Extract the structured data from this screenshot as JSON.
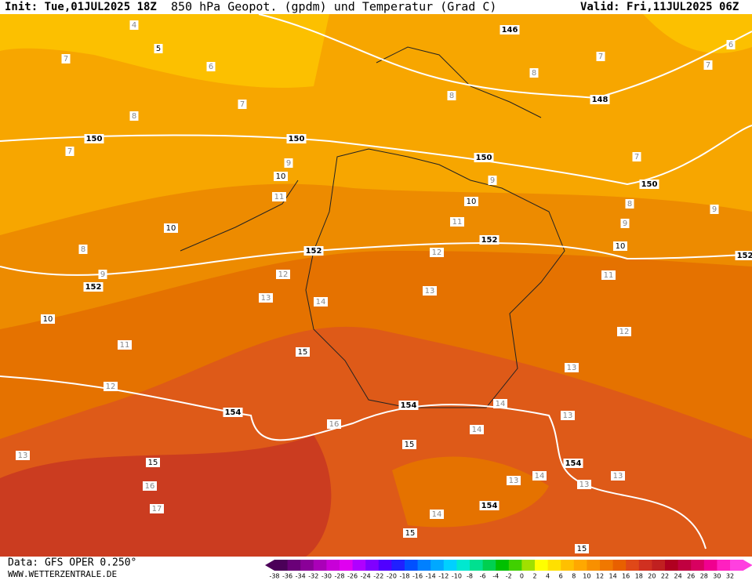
{
  "header": {
    "init": "Init: Tue,01JUL2025 18Z",
    "title": "850 hPa Geopot. (gpdm) und Temperatur (Grad C)",
    "valid": "Valid: Fri,11JUL2025 06Z"
  },
  "footer": {
    "data": "Data: GFS OPER 0.250°",
    "site": "WWW.WETTERZENTRALE.DE"
  },
  "geopotential_labels": [
    146,
    148,
    150,
    150,
    150,
    150,
    152,
    152,
    152,
    152,
    154,
    154,
    154,
    154
  ],
  "isotherm_labels": [
    5,
    10,
    10,
    10,
    10,
    10,
    15,
    15,
    15,
    15,
    15
  ],
  "temperature_labels": [
    4,
    7,
    6,
    7,
    8,
    7,
    9,
    11,
    8,
    9,
    12,
    13,
    14,
    11,
    12,
    13,
    16,
    17,
    12,
    13,
    11,
    12,
    13,
    14,
    13,
    14,
    16,
    14,
    13,
    13,
    13,
    14,
    7,
    6,
    7,
    8,
    8,
    7,
    9,
    8,
    9,
    9,
    11
  ],
  "color_scale": {
    "labels": [
      -38,
      -36,
      -34,
      -32,
      -30,
      -28,
      -26,
      -24,
      -22,
      -20,
      -18,
      -16,
      -14,
      -12,
      -10,
      -8,
      -6,
      -4,
      -2,
      0,
      2,
      4,
      6,
      8,
      10,
      12,
      14,
      16,
      18,
      20,
      22,
      24,
      26,
      28,
      30,
      32
    ],
    "colors": [
      "#4b0058",
      "#6a0078",
      "#8a0098",
      "#aa00b8",
      "#c800d8",
      "#e000f0",
      "#b000ff",
      "#8000ff",
      "#5000ff",
      "#2020ff",
      "#0050ff",
      "#0080ff",
      "#00a8ff",
      "#00d0ff",
      "#00e8d0",
      "#00e090",
      "#00d050",
      "#00c000",
      "#40d000",
      "#a0e000",
      "#ffff00",
      "#ffe000",
      "#ffc000",
      "#ffa800",
      "#f89000",
      "#f07800",
      "#e86000",
      "#e04818",
      "#d03020",
      "#c02020",
      "#b00020",
      "#c00040",
      "#d80060",
      "#f00090",
      "#ff20c0",
      "#ff40e0"
    ]
  }
}
